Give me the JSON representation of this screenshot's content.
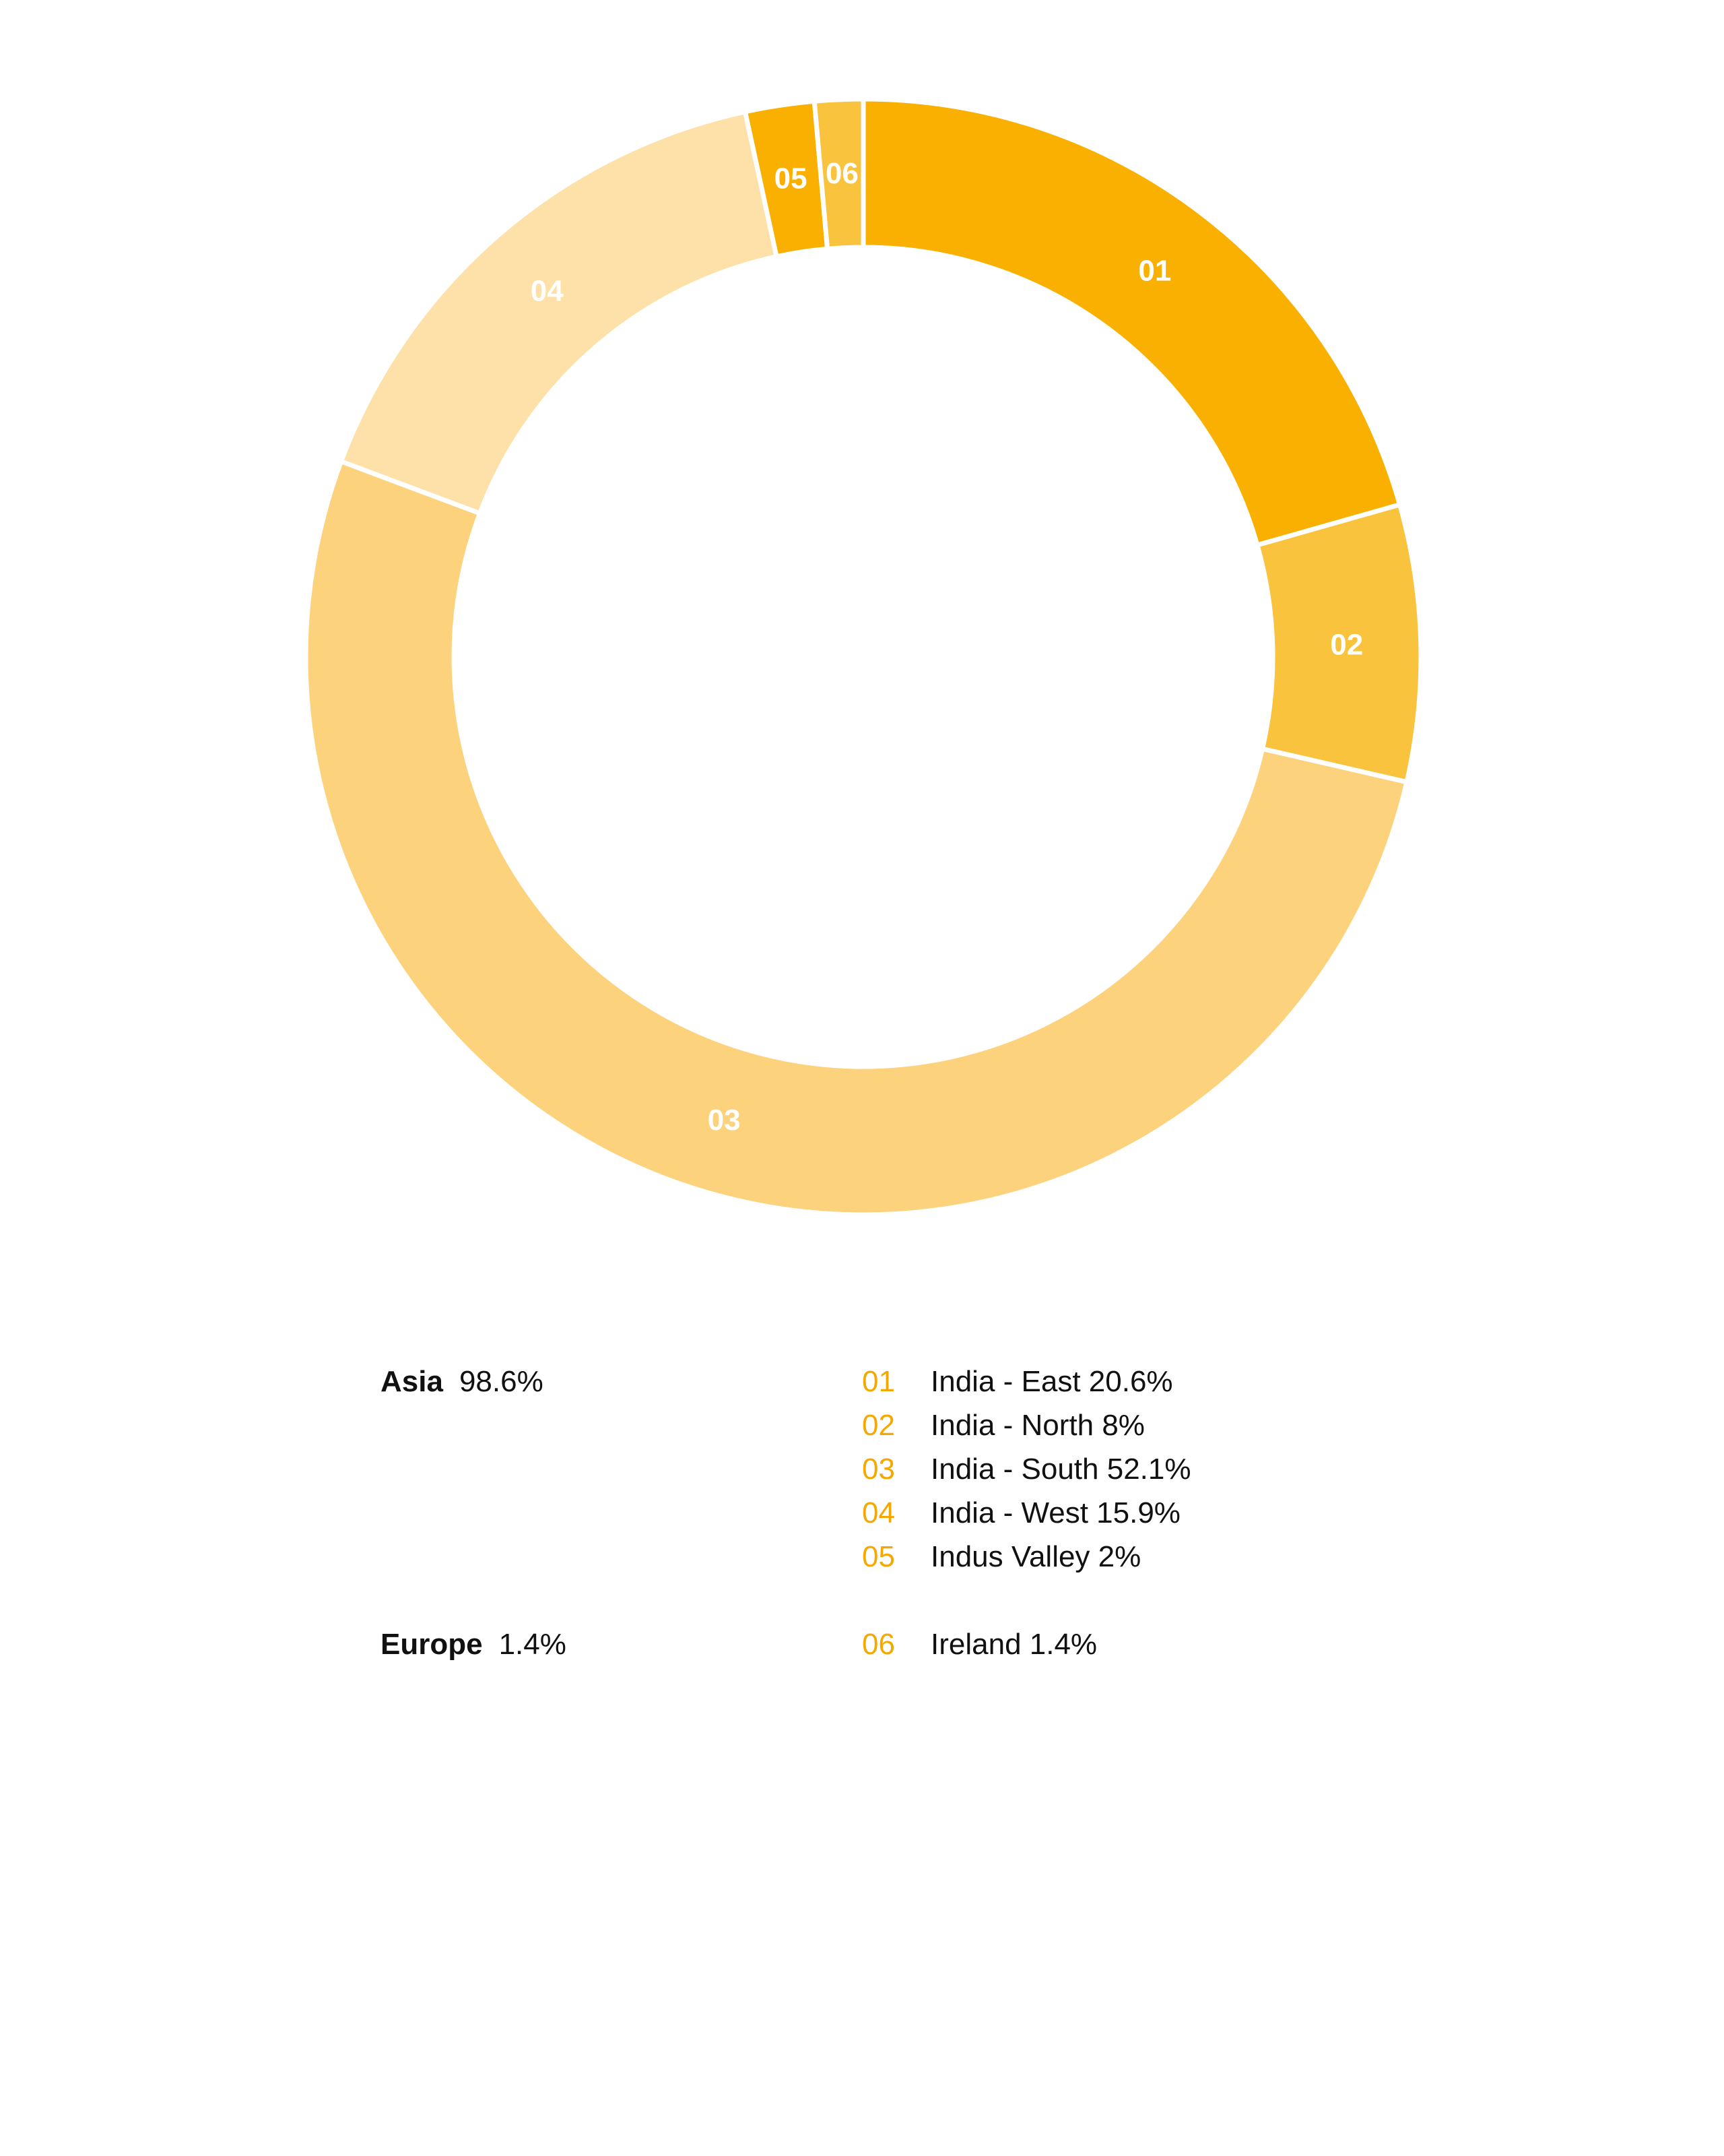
{
  "chart_data": {
    "type": "donut",
    "start_angle_deg": 0,
    "direction": "clockwise",
    "segments": [
      {
        "code": "01",
        "label": "India - East",
        "value": 20.6,
        "value_text": "20.6%",
        "color": "#F9B000"
      },
      {
        "code": "02",
        "label": "India - North",
        "value": 8,
        "value_text": "8%",
        "color": "#F9C33E"
      },
      {
        "code": "03",
        "label": "India - South",
        "value": 52.1,
        "value_text": "52.1%",
        "color": "#FDD27D"
      },
      {
        "code": "04",
        "label": "India - West",
        "value": 15.9,
        "value_text": "15.9%",
        "color": "#FEE1A8"
      },
      {
        "code": "05",
        "label": "Indus Valley",
        "value": 2,
        "value_text": "2%",
        "color": "#F9B000"
      },
      {
        "code": "06",
        "label": "Ireland",
        "value": 1.4,
        "value_text": "1.4%",
        "color": "#F9C33E"
      }
    ],
    "groups": [
      {
        "name": "Asia",
        "value_text": "98.6%",
        "codes": [
          "01",
          "02",
          "03",
          "04",
          "05"
        ]
      },
      {
        "name": "Europe",
        "value_text": "1.4%",
        "codes": [
          "06"
        ]
      }
    ]
  },
  "colors": {
    "legend_code": "#F5A800",
    "text": "#111111",
    "separator": "#ffffff",
    "segment_label": "#ffffff"
  }
}
